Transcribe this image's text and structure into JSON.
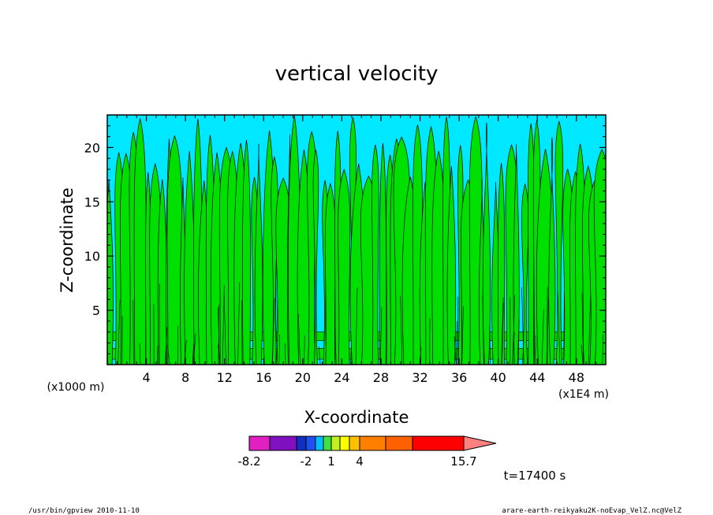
{
  "chart_data": {
    "type": "heatmap",
    "title": "vertical velocity",
    "xlabel": "X-coordinate",
    "ylabel": "Z-coordinate",
    "x_unit_left": "(x1000 m)",
    "x_unit_right": "(x1E4 m)",
    "xlim": [
      0,
      51
    ],
    "ylim": [
      0,
      23
    ],
    "x_ticks": [
      "4",
      "8",
      "12",
      "16",
      "20",
      "24",
      "28",
      "32",
      "36",
      "40",
      "44",
      "48"
    ],
    "y_ticks": [
      "5",
      "10",
      "15",
      "20"
    ],
    "x_tick_values": [
      4,
      8,
      12,
      16,
      20,
      24,
      28,
      32,
      36,
      40,
      44,
      48
    ],
    "y_tick_values": [
      5,
      10,
      15,
      20
    ],
    "colorbar": {
      "colors": [
        "#e020c0",
        "#8010c0",
        "#1030c0",
        "#2050f0",
        "#00c0ff",
        "#40e040",
        "#c0f020",
        "#ffff00",
        "#ffc000",
        "#ff8000",
        "#ff6000",
        "#ff0000",
        "#ff8080"
      ],
      "tick_labels": [
        "-8.2",
        "-2",
        "1",
        "4",
        "15.7"
      ]
    },
    "time_label": "t=17400 s",
    "background_color": "#00e8ff",
    "updraft_color": "#00e000"
  },
  "footer": {
    "left": "/usr/bin/gpview   2010-11-10",
    "right": "arare-earth-reikyaku2K-noEvap_VelZ.nc@VelZ"
  }
}
